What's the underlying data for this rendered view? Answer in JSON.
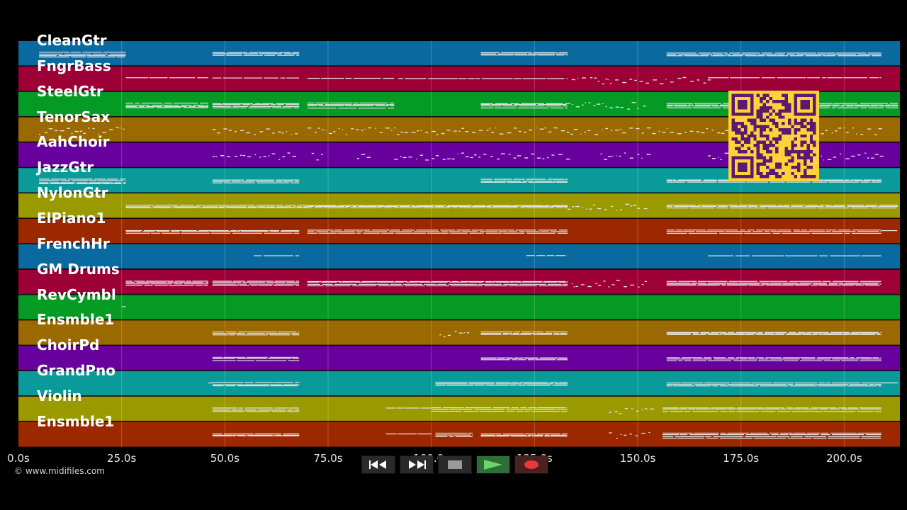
{
  "app": {
    "copyright": "© www.midifiles.com"
  },
  "timeline": {
    "ticks": [
      "0.0s",
      "25.0s",
      "50.0s",
      "75.0s",
      "100.0s",
      "125.0s",
      "150.0s",
      "175.0s",
      "200.0s"
    ],
    "max_seconds": 213.5
  },
  "tracks": [
    {
      "name": "CleanGtr",
      "color": "#0a6aa0"
    },
    {
      "name": "FngrBass",
      "color": "#9c0037"
    },
    {
      "name": "SteelGtr",
      "color": "#059a24"
    },
    {
      "name": "TenorSax",
      "color": "#9a6a00"
    },
    {
      "name": "AahChoir",
      "color": "#68009e"
    },
    {
      "name": "JazzGtr",
      "color": "#0a9a9a"
    },
    {
      "name": "NylonGtr",
      "color": "#9a9a00"
    },
    {
      "name": "ElPiano1",
      "color": "#9c2800"
    },
    {
      "name": "FrenchHr",
      "color": "#0a6aa0"
    },
    {
      "name": "GM Drums",
      "color": "#9c0037"
    },
    {
      "name": "RevCymbl",
      "color": "#059a24"
    },
    {
      "name": "Ensmble1",
      "color": "#9a6a00"
    },
    {
      "name": "ChoirPd",
      "color": "#68009e"
    },
    {
      "name": "GrandPno",
      "color": "#0a9a9a"
    },
    {
      "name": "Violin",
      "color": "#9a9a00"
    },
    {
      "name": "Ensmble1",
      "color": "#9c2800"
    }
  ],
  "note_segments": [
    [
      [
        5,
        26,
        "dense"
      ],
      [
        47,
        68,
        "light"
      ],
      [
        112,
        133,
        "light"
      ],
      [
        157,
        209,
        "light"
      ]
    ],
    [
      [
        26,
        46,
        "thin"
      ],
      [
        47,
        68,
        "thin"
      ],
      [
        70,
        91,
        "thin"
      ],
      [
        92,
        133,
        "thin"
      ],
      [
        134,
        167,
        "sparse"
      ],
      [
        167,
        209,
        "thin"
      ]
    ],
    [
      [
        26,
        46,
        "dense"
      ],
      [
        47,
        68,
        "dense"
      ],
      [
        70,
        91,
        "dense"
      ],
      [
        112,
        133,
        "dense"
      ],
      [
        133,
        152,
        "sparse"
      ],
      [
        157,
        213,
        "dense"
      ]
    ],
    [
      [
        5,
        26,
        "sparse"
      ],
      [
        47,
        68,
        "sparse"
      ],
      [
        70,
        133,
        "sparse"
      ],
      [
        133,
        156,
        "sparse"
      ],
      [
        157,
        209,
        "sparse"
      ]
    ],
    [
      [
        47,
        68,
        "sparse"
      ],
      [
        71,
        74,
        "sparse"
      ],
      [
        82,
        86,
        "sparse"
      ],
      [
        91,
        133,
        "sparse"
      ],
      [
        141,
        153,
        "sparse"
      ],
      [
        167,
        209,
        "sparse"
      ]
    ],
    [
      [
        5,
        26,
        "dense"
      ],
      [
        47,
        68,
        "light"
      ],
      [
        112,
        133,
        "light"
      ],
      [
        157,
        209,
        "light"
      ]
    ],
    [
      [
        26,
        70,
        "light"
      ],
      [
        70,
        133,
        "light"
      ],
      [
        133,
        152,
        "sparse"
      ],
      [
        157,
        213,
        "light"
      ]
    ],
    [
      [
        26,
        68,
        "light"
      ],
      [
        70,
        133,
        "light"
      ],
      [
        157,
        209,
        "light"
      ],
      [
        209,
        213,
        "thin"
      ]
    ],
    [
      [
        57,
        68,
        "thin"
      ],
      [
        123,
        133,
        "thin"
      ],
      [
        167,
        209,
        "thin"
      ]
    ],
    [
      [
        26,
        46,
        "dense"
      ],
      [
        47,
        68,
        "dense"
      ],
      [
        70,
        133,
        "dense"
      ],
      [
        134,
        152,
        "sparse"
      ],
      [
        157,
        209,
        "dense"
      ]
    ],
    [
      [
        25,
        26,
        "thin"
      ]
    ],
    [
      [
        47,
        68,
        "light"
      ],
      [
        102,
        110,
        "sparse"
      ],
      [
        112,
        133,
        "light"
      ],
      [
        157,
        209,
        "light"
      ]
    ],
    [
      [
        47,
        68,
        "light"
      ],
      [
        112,
        133,
        "light"
      ],
      [
        157,
        209,
        "light"
      ]
    ],
    [
      [
        46,
        47,
        "thin"
      ],
      [
        47,
        68,
        "light"
      ],
      [
        101,
        133,
        "light"
      ],
      [
        157,
        209,
        "light"
      ],
      [
        209,
        213,
        "thin"
      ]
    ],
    [
      [
        47,
        68,
        "light"
      ],
      [
        89,
        100,
        "thin"
      ],
      [
        100,
        133,
        "light"
      ],
      [
        143,
        153,
        "sparse"
      ],
      [
        156,
        209,
        "light"
      ]
    ],
    [
      [
        47,
        68,
        "light"
      ],
      [
        89,
        100,
        "thin"
      ],
      [
        101,
        110,
        "light"
      ],
      [
        112,
        133,
        "light"
      ],
      [
        143,
        153,
        "sparse"
      ],
      [
        156,
        209,
        "dense"
      ]
    ]
  ],
  "transport": {
    "buttons": [
      {
        "name": "rewind",
        "icon": "rewind-icon"
      },
      {
        "name": "fast-forward",
        "icon": "fast-forward-icon"
      },
      {
        "name": "stop",
        "icon": "stop-icon"
      },
      {
        "name": "play",
        "icon": "play-icon"
      },
      {
        "name": "record",
        "icon": "record-icon"
      }
    ]
  }
}
